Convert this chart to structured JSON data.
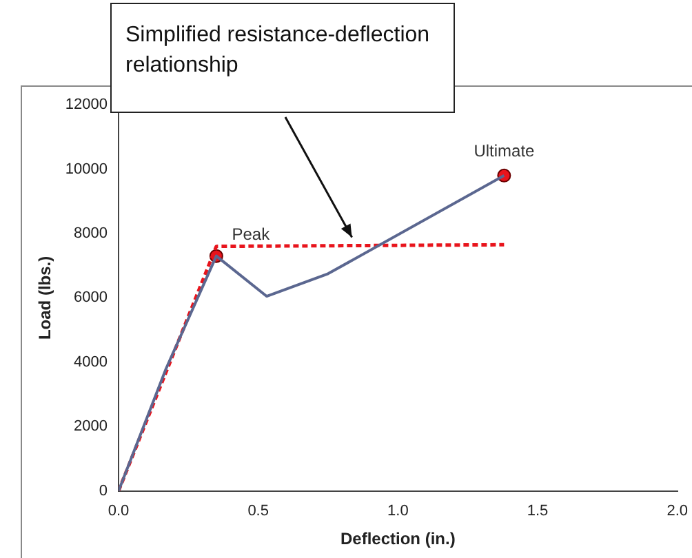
{
  "chart_data": {
    "type": "line",
    "xlabel": "Deflection (in.)",
    "ylabel": "Load (lbs.)",
    "xlim": [
      0,
      2
    ],
    "xticks": [
      {
        "value": 0,
        "label": "0.0"
      },
      {
        "value": 0.5,
        "label": "0.5"
      },
      {
        "value": 1,
        "label": "1.0"
      },
      {
        "value": 1.5,
        "label": "1.5"
      },
      {
        "value": 2,
        "label": "2.0"
      }
    ],
    "ylim": [
      0,
      12000
    ],
    "yticks": [
      0,
      2000,
      4000,
      6000,
      8000,
      10000,
      12000
    ],
    "grid": false,
    "legend": false,
    "series": [
      {
        "color": "#5b6790",
        "x": [
          0,
          0.17,
          0.35,
          0.53,
          0.75,
          1.38
        ],
        "values": [
          0,
          3800,
          7300,
          6050,
          6750,
          9800
        ],
        "marker": "none",
        "line_style": "solid"
      },
      {
        "color": "#e8141c",
        "x": [
          0,
          0.35,
          1.38
        ],
        "values": [
          0,
          7600,
          7650
        ],
        "marker": "none",
        "line_style": "dashed"
      },
      {
        "type": "scatter",
        "color": "#e8141c",
        "x": [
          0.35,
          1.38
        ],
        "values": [
          7300,
          9800
        ],
        "marker": "circle"
      }
    ],
    "annotations": [
      {
        "text": "Peak",
        "x": 0.35,
        "y": 7300
      },
      {
        "text": "Ultimate",
        "x": 1.38,
        "y": 9800
      },
      "Simplified resistance-deflection relationship"
    ]
  }
}
